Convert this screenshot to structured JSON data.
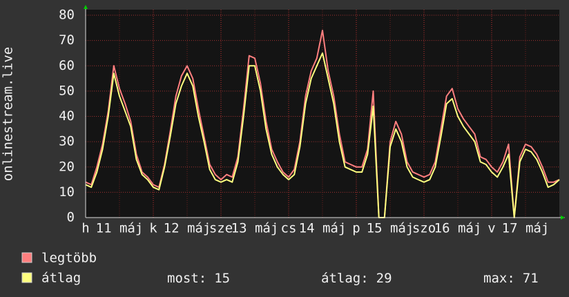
{
  "chart_data": {
    "type": "line",
    "ylabel": "onlinestream.live",
    "x": [
      0,
      2,
      4,
      6,
      8,
      10,
      12,
      14,
      16,
      18,
      20,
      22,
      24,
      26,
      28,
      30,
      32,
      34,
      36,
      38,
      40,
      42,
      44,
      46,
      48,
      50,
      52,
      54,
      56,
      58,
      60,
      62,
      64,
      66,
      68,
      70,
      72,
      74,
      76,
      78,
      80,
      82,
      84,
      86,
      88,
      90,
      92,
      94,
      96,
      98,
      100,
      102,
      104,
      106,
      108,
      110,
      112,
      114,
      116,
      118,
      120,
      122,
      124,
      126,
      128,
      130,
      132,
      134,
      136,
      138,
      140,
      142,
      144,
      146,
      148,
      150,
      152,
      154,
      156,
      158,
      160,
      162,
      164,
      166,
      168
    ],
    "series": [
      {
        "name": "legtöbb",
        "color": "#ff7f7f",
        "values": [
          14,
          13,
          20,
          29,
          42,
          60,
          51,
          45,
          38,
          25,
          18,
          16,
          13,
          12,
          21,
          34,
          48,
          56,
          60,
          55,
          43,
          32,
          21,
          17,
          15,
          17,
          16,
          24,
          43,
          64,
          63,
          53,
          38,
          27,
          22,
          18,
          16,
          19,
          30,
          48,
          58,
          63,
          74,
          58,
          48,
          33,
          22,
          21,
          20,
          20,
          27,
          50,
          0,
          0,
          30,
          38,
          33,
          22,
          18,
          17,
          16,
          17,
          22,
          35,
          48,
          51,
          43,
          39,
          36,
          33,
          24,
          23,
          20,
          18,
          22,
          29,
          0,
          24,
          29,
          28,
          25,
          20,
          14,
          14,
          15
        ]
      },
      {
        "name": "átlag",
        "color": "#ffff7f",
        "values": [
          13,
          12,
          18,
          27,
          40,
          57,
          48,
          42,
          36,
          23,
          17,
          15,
          12,
          11,
          20,
          32,
          45,
          52,
          57,
          52,
          40,
          30,
          19,
          15,
          14,
          15,
          14,
          22,
          40,
          60,
          60,
          50,
          35,
          25,
          20,
          17,
          15,
          17,
          28,
          45,
          55,
          60,
          65,
          55,
          45,
          30,
          20,
          19,
          18,
          18,
          25,
          44,
          0,
          0,
          28,
          35,
          30,
          20,
          16,
          15,
          14,
          15,
          20,
          32,
          45,
          47,
          40,
          36,
          33,
          30,
          22,
          21,
          18,
          16,
          20,
          25,
          0,
          22,
          27,
          26,
          23,
          18,
          12,
          13,
          15
        ]
      }
    ],
    "xlim": [
      0,
      168
    ],
    "xticks": [
      {
        "value": 0,
        "label": "h"
      },
      {
        "value": 12,
        "label": "11 máj"
      },
      {
        "value": 24,
        "label": "k"
      },
      {
        "value": 36,
        "label": "12 máj"
      },
      {
        "value": 48,
        "label": "sze"
      },
      {
        "value": 60,
        "label": "13 máj"
      },
      {
        "value": 72,
        "label": "cs"
      },
      {
        "value": 84,
        "label": "14 máj"
      },
      {
        "value": 96,
        "label": "p"
      },
      {
        "value": 108,
        "label": "15 máj"
      },
      {
        "value": 120,
        "label": "szo"
      },
      {
        "value": 132,
        "label": "16 máj"
      },
      {
        "value": 144,
        "label": "v"
      },
      {
        "value": 156,
        "label": "17 máj"
      }
    ],
    "ylim": [
      0,
      80
    ],
    "yticks": [
      0,
      10,
      20,
      30,
      40,
      50,
      60,
      70,
      80
    ],
    "grid": true,
    "stats": [
      {
        "label": "most:",
        "value": 15
      },
      {
        "label": "átlag:",
        "value": 29
      },
      {
        "label": "max:",
        "value": 71
      }
    ]
  }
}
